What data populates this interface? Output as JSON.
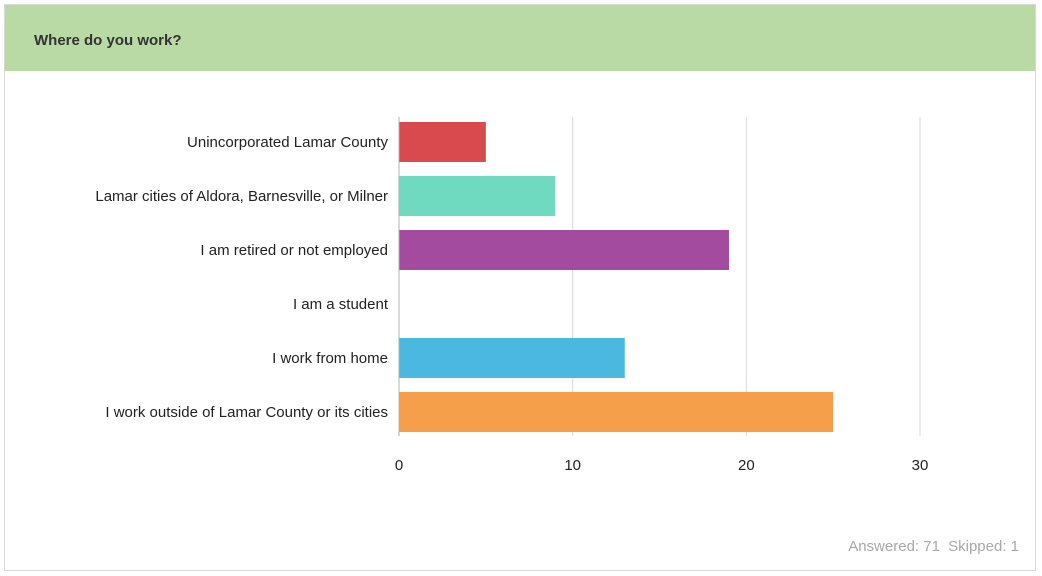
{
  "question": {
    "title": "Where do you work?"
  },
  "footer": {
    "answered": "Answered: 71",
    "skipped": "Skipped: 1"
  },
  "colors": {
    "header_bg": "#b9d9a5",
    "grid": "#d9d9d9",
    "axis": "#b0b0b0",
    "muted_text": "#a8a8a8"
  },
  "chart_data": {
    "type": "bar",
    "orientation": "horizontal",
    "categories": [
      "Unincorporated Lamar County",
      "Lamar cities of Aldora, Barnesville, or Milner",
      "I am retired or not employed",
      "I am a student",
      "I work from home",
      "I work outside of Lamar County or its cities"
    ],
    "values": [
      5,
      9,
      19,
      0,
      13,
      25
    ],
    "bar_colors": [
      "#d84a4e",
      "#6fdac0",
      "#a24b9f",
      "#f2c85a",
      "#4ab8df",
      "#f59f4b"
    ],
    "x_ticks": [
      0,
      10,
      20,
      30
    ],
    "xlim": [
      0,
      30
    ],
    "grid": true
  }
}
